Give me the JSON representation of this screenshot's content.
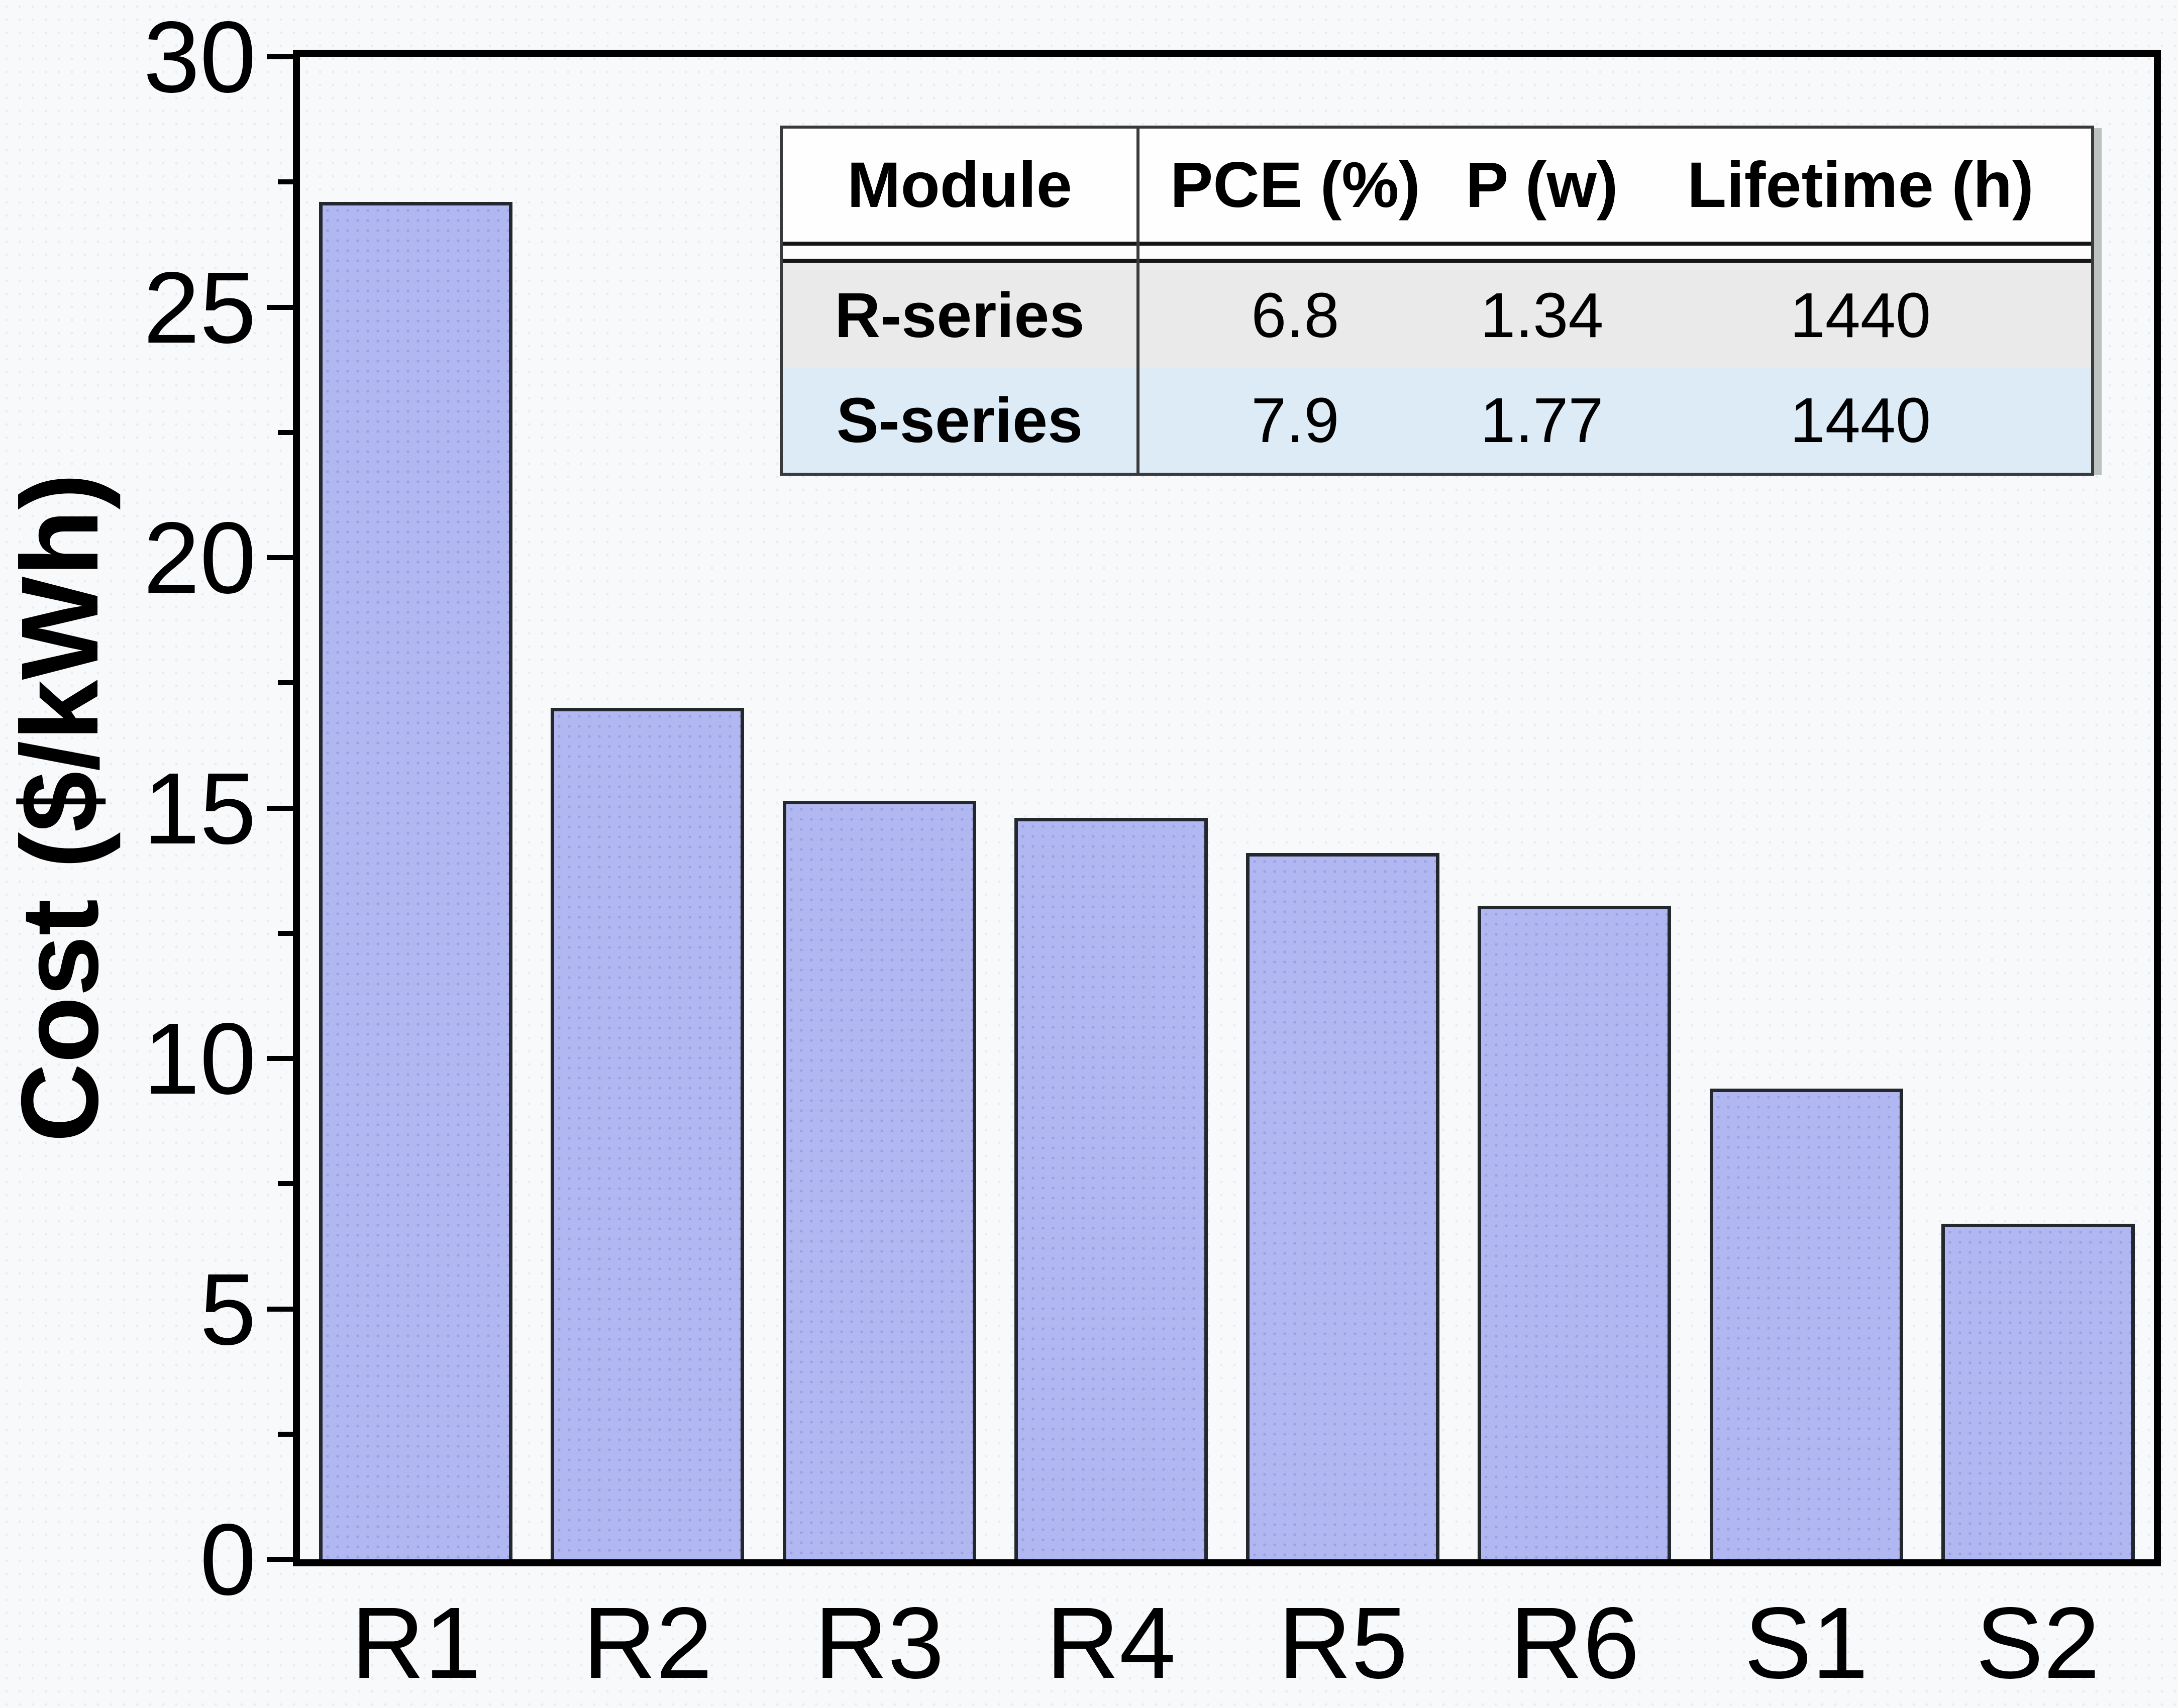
{
  "figure": {
    "background": "#f8f9fb"
  },
  "chart_data": {
    "type": "bar",
    "title": "",
    "categories": [
      "R1",
      "R2",
      "R3",
      "R4",
      "R5",
      "R6",
      "S1",
      "S2"
    ],
    "values": [
      27.1,
      17.0,
      15.15,
      14.8,
      14.1,
      13.05,
      9.4,
      6.7
    ],
    "xlabel": "",
    "ylabel": "Cost ($/kWh)",
    "ylim": [
      0,
      30
    ],
    "y_major_ticks": [
      0,
      5,
      10,
      15,
      20,
      25,
      30
    ],
    "y_minor_tick_step": 2.5,
    "grid": false,
    "legend": false,
    "bar_fill": "#b1b7f1",
    "bar_border": "#23272e",
    "axis_color": "#000000"
  },
  "inset_table": {
    "headers": [
      "Module",
      "PCE (%)",
      "P (w)",
      "Lifetime (h)"
    ],
    "rows": [
      {
        "module": "R-series",
        "pce": "6.8",
        "p": "1.34",
        "lifetime": "1440",
        "row_color": "#eaeaea"
      },
      {
        "module": "S-series",
        "pce": "7.9",
        "p": "1.77",
        "lifetime": "1440",
        "row_color": "#dcebf6"
      }
    ]
  }
}
